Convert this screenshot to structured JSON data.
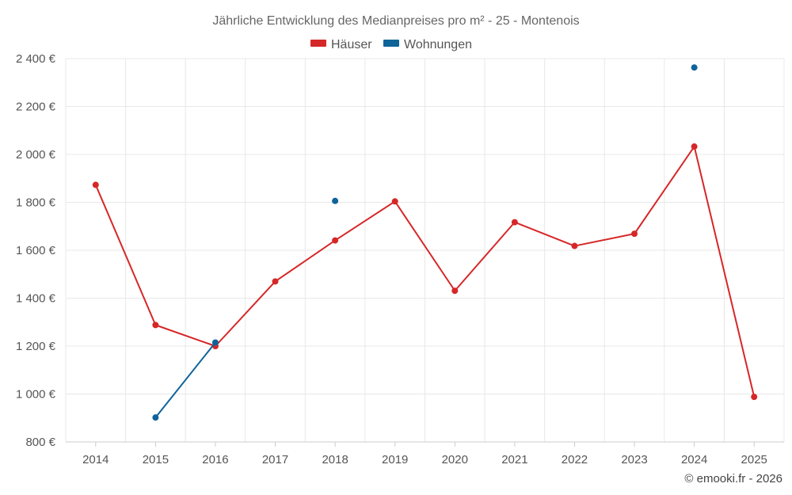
{
  "chart_data": {
    "type": "line",
    "title": "Jährliche Entwicklung des Medianpreises pro m² - 25 - Montenois",
    "categories": [
      "2014",
      "2015",
      "2016",
      "2017",
      "2018",
      "2019",
      "2020",
      "2021",
      "2022",
      "2023",
      "2024",
      "2025"
    ],
    "series": [
      {
        "name": "Häuser",
        "color": "#d62728",
        "values": [
          1873,
          1288,
          1200,
          1470,
          1641,
          1804,
          1431,
          1717,
          1618,
          1669,
          2033,
          988
        ]
      },
      {
        "name": "Wohnungen",
        "color": "#0e6399",
        "values": [
          null,
          902,
          1215,
          null,
          1806,
          null,
          null,
          null,
          null,
          null,
          2363,
          null
        ]
      }
    ],
    "ylim": [
      800,
      2400
    ],
    "yticks": [
      800,
      1000,
      1200,
      1400,
      1600,
      1800,
      2000,
      2200,
      2400
    ],
    "ytick_labels": [
      "800 €",
      "1 000 €",
      "1 200 €",
      "1 400 €",
      "1 600 €",
      "1 800 €",
      "2 000 €",
      "2 200 €",
      "2 400 €"
    ],
    "grid": true,
    "legend_position": "top-center"
  },
  "credit": "© emooki.fr - 2026"
}
